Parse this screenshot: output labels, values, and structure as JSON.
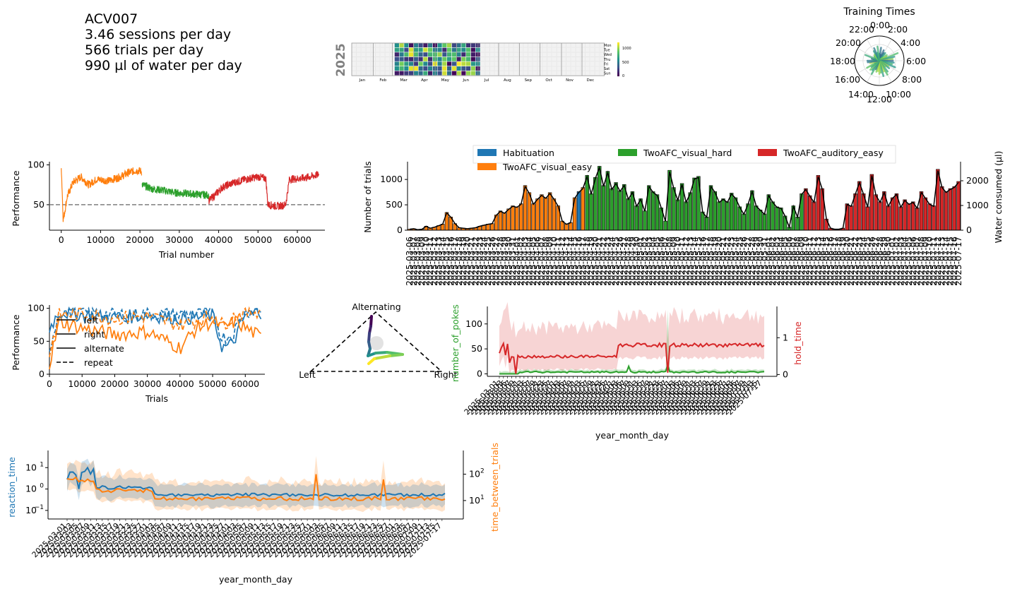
{
  "summary": {
    "subject": "ACV007",
    "sessions": "3.46 sessions per day",
    "trials": "566 trials per day",
    "water": "990 µl of water per day"
  },
  "calendar": {
    "year": "2025",
    "months": [
      "Jan",
      "Feb",
      "Mar",
      "Apr",
      "May",
      "Jun",
      "Jul",
      "Aug",
      "Sep",
      "Oct",
      "Nov",
      "Dec"
    ],
    "weekdays": [
      "Mon",
      "Tue",
      "Wed",
      "Thu",
      "Fri",
      "Sat",
      "Sun"
    ],
    "colorbar_ticks": [
      "1000",
      "500",
      "0"
    ]
  },
  "chart_data": [
    {
      "id": "training_times",
      "type": "polar_bar",
      "title": "Training Times",
      "hour_labels": [
        "0:00",
        "2:00",
        "4:00",
        "6:00",
        "8:00",
        "10:00",
        "12:00",
        "14:00",
        "16:00",
        "18:00",
        "20:00",
        "22:00"
      ]
    },
    {
      "id": "performance_vs_trials",
      "type": "line",
      "xlabel": "Trial number",
      "ylabel": "Performance",
      "xticks": [
        "0",
        "10000",
        "20000",
        "30000",
        "40000",
        "50000",
        "60000"
      ],
      "yticks": [
        "50",
        "100"
      ],
      "xlim": [
        -3000,
        67000
      ],
      "ylim": [
        18,
        104
      ],
      "chance_line": 50,
      "series": [
        {
          "color": "#ff7f0e",
          "points": [
            [
              0,
              100
            ],
            [
              500,
              30
            ],
            [
              1500,
              60
            ],
            [
              3000,
              78
            ],
            [
              5000,
              85
            ],
            [
              7000,
              75
            ],
            [
              9000,
              82
            ],
            [
              12000,
              80
            ],
            [
              15000,
              85
            ],
            [
              17000,
              90
            ],
            [
              19000,
              93
            ],
            [
              20500,
              92
            ]
          ]
        },
        {
          "color": "#2ca02c",
          "points": [
            [
              20500,
              75
            ],
            [
              23000,
              70
            ],
            [
              26000,
              68
            ],
            [
              29000,
              65
            ],
            [
              32000,
              64
            ],
            [
              35000,
              63
            ],
            [
              37500,
              62
            ]
          ]
        },
        {
          "color": "#d62728",
          "points": [
            [
              37500,
              55
            ],
            [
              39000,
              62
            ],
            [
              41000,
              72
            ],
            [
              44000,
              78
            ],
            [
              47000,
              82
            ],
            [
              50000,
              85
            ],
            [
              52000,
              83
            ],
            [
              52500,
              50
            ],
            [
              55000,
              48
            ],
            [
              57000,
              50
            ],
            [
              58000,
              82
            ],
            [
              61000,
              83
            ],
            [
              64000,
              86
            ],
            [
              65500,
              88
            ]
          ]
        }
      ]
    },
    {
      "id": "trials_per_day",
      "type": "bar",
      "ylabel": "Number of trials",
      "y2label": "Water consumed (µl)",
      "yticks": [
        "0",
        "500",
        "1000"
      ],
      "y2ticks": [
        "0",
        "1000",
        "2000"
      ],
      "ylim": [
        0,
        1350
      ],
      "legend": [
        "Habituation",
        "TwoAFC_visual_easy",
        "TwoAFC_visual_hard",
        "TwoAFC_auditory_easy"
      ],
      "colors": {
        "Habituation": "#1f77b4",
        "TwoAFC_visual_easy": "#ff7f0e",
        "TwoAFC_visual_hard": "#2ca02c",
        "TwoAFC_auditory_easy": "#d62728"
      },
      "dates": [
        "2025-03-06",
        "2025-03-07",
        "2025-03-08",
        "2025-03-09",
        "2025-03-10",
        "2025-03-11",
        "2025-03-12",
        "2025-03-13",
        "2025-03-14",
        "2025-03-15",
        "2025-03-16",
        "2025-03-17",
        "2025-03-18",
        "2025-03-19",
        "2025-03-20",
        "2025-03-21",
        "2025-03-22",
        "2025-03-23",
        "2025-03-24",
        "2025-03-25",
        "2025-03-26",
        "2025-03-27",
        "2025-03-28",
        "2025-03-29",
        "2025-03-30",
        "2025-03-31",
        "2025-04-01",
        "2025-04-02",
        "2025-04-03",
        "2025-04-04",
        "2025-04-05",
        "2025-04-06",
        "2025-04-07",
        "2025-04-08",
        "2025-04-09",
        "2025-04-10",
        "2025-04-11",
        "2025-04-12",
        "2025-04-13",
        "2025-04-14",
        "2025-04-15",
        "2025-04-16",
        "2025-04-17",
        "2025-04-18",
        "2025-04-19",
        "2025-04-20",
        "2025-04-21",
        "2025-04-22",
        "2025-04-23",
        "2025-04-24",
        "2025-04-25",
        "2025-04-26",
        "2025-04-27",
        "2025-04-28",
        "2025-04-29",
        "2025-04-30",
        "2025-05-01",
        "2025-05-02",
        "2025-05-03",
        "2025-05-04",
        "2025-05-05",
        "2025-05-06",
        "2025-05-07",
        "2025-05-08",
        "2025-05-09",
        "2025-05-10",
        "2025-05-11",
        "2025-05-12",
        "2025-05-13",
        "2025-05-14",
        "2025-05-15",
        "2025-05-16",
        "2025-05-17",
        "2025-05-18",
        "2025-05-19",
        "2025-05-20",
        "2025-05-21",
        "2025-05-22",
        "2025-05-23",
        "2025-05-24",
        "2025-05-25",
        "2025-05-26",
        "2025-05-27",
        "2025-05-28",
        "2025-05-29",
        "2025-05-30",
        "2025-05-31",
        "2025-06-01",
        "2025-06-02",
        "2025-06-03",
        "2025-06-04",
        "2025-06-05",
        "2025-06-06",
        "2025-06-07",
        "2025-06-08",
        "2025-06-09",
        "2025-06-10",
        "2025-06-11",
        "2025-06-12",
        "2025-06-13",
        "2025-06-14",
        "2025-06-15",
        "2025-06-16",
        "2025-06-17",
        "2025-06-18",
        "2025-06-19",
        "2025-06-20",
        "2025-06-21",
        "2025-06-22",
        "2025-06-23",
        "2025-06-24",
        "2025-06-25",
        "2025-06-26",
        "2025-06-27",
        "2025-06-28",
        "2025-06-29",
        "2025-06-30",
        "2025-07-01",
        "2025-07-02",
        "2025-07-03",
        "2025-07-04",
        "2025-07-05",
        "2025-07-06",
        "2025-07-07",
        "2025-07-08",
        "2025-07-09",
        "2025-07-10",
        "2025-07-11",
        "2025-07-12",
        "2025-07-13",
        "2025-07-14",
        "2025-07-15",
        "2025-07-16",
        "2025-07-17"
      ],
      "values": [
        20,
        30,
        10,
        20,
        80,
        40,
        60,
        90,
        120,
        350,
        260,
        130,
        50,
        40,
        30,
        40,
        50,
        80,
        100,
        120,
        130,
        300,
        380,
        340,
        420,
        480,
        460,
        520,
        880,
        740,
        520,
        620,
        700,
        640,
        740,
        620,
        480,
        180,
        120,
        150,
        640,
        760,
        840,
        1080,
        720,
        1040,
        1260,
        880,
        1160,
        820,
        940,
        780,
        900,
        620,
        760,
        480,
        620,
        380,
        880,
        760,
        700,
        440,
        180,
        1180,
        840,
        600,
        920,
        560,
        740,
        1030,
        1060,
        360,
        260,
        880,
        760,
        560,
        620,
        560,
        730,
        640,
        460,
        320,
        520,
        780,
        480,
        400,
        320,
        700,
        560,
        460,
        440,
        280,
        60,
        480,
        260,
        720,
        820,
        680,
        560,
        1080,
        820,
        220,
        40,
        20,
        20,
        40,
        520,
        480,
        720,
        960,
        720,
        460,
        1100,
        700,
        560,
        760,
        480,
        640,
        720,
        460,
        600,
        520,
        560,
        440,
        760,
        640,
        520,
        480,
        1200,
        860,
        760,
        820,
        860,
        960
      ],
      "stage_by_index": "0-42 TwoAFC_visual_easy (with Habituation at 41), 43-95 TwoAFC_visual_hard, 96+ TwoAFC_auditory_easy"
    },
    {
      "id": "side_performance",
      "type": "line",
      "xlabel": "Trials",
      "ylabel": "Performance",
      "xticks": [
        "0",
        "10000",
        "20000",
        "30000",
        "40000",
        "50000",
        "60000"
      ],
      "yticks": [
        "0",
        "50",
        "100"
      ],
      "xlim": [
        0,
        66000
      ],
      "ylim": [
        0,
        105
      ],
      "legend": [
        "left",
        "right",
        "alternate",
        "repeat"
      ]
    },
    {
      "id": "strategy_triangle",
      "type": "scatter",
      "vertex_labels": [
        "Alternating",
        "Left",
        "Right"
      ]
    },
    {
      "id": "pokes_and_hold",
      "type": "line",
      "xlabel": "year_month_day",
      "ylabel": "number_of_pokes",
      "y2label": "hold_time",
      "yticks": [
        "0",
        "50",
        "100"
      ],
      "y2ticks": [
        "0",
        "1"
      ],
      "ylim": [
        -5,
        135
      ],
      "y2lim": [
        -0.05,
        1.85
      ]
    },
    {
      "id": "reaction_times",
      "type": "line",
      "xlabel": "year_month_day",
      "ylabel": "reaction_time",
      "y2label": "time_between_trials",
      "yticks": [
        "10^-1",
        "10^0",
        "10^1"
      ],
      "y2ticks": [
        "10^1",
        "10^2"
      ],
      "yscale": "log"
    }
  ]
}
